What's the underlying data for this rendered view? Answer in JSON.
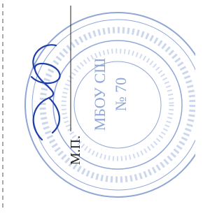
{
  "stamp": {
    "center_line1": "МБОУ СШ",
    "center_line2": "№ 70"
  },
  "mark": "М.П."
}
